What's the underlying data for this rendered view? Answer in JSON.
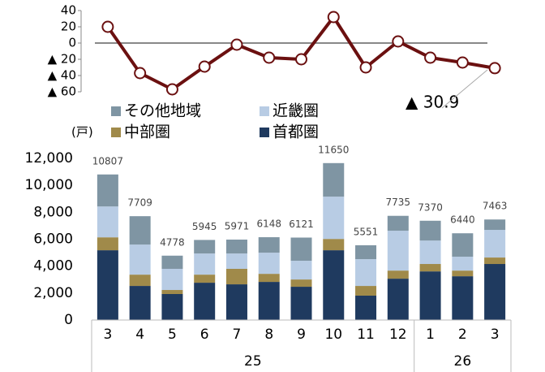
{
  "chart_data": [
    {
      "type": "line",
      "values": [
        20,
        -37,
        -57,
        -29,
        -2,
        -18,
        -20,
        32,
        -30,
        2,
        -18,
        -24,
        -30.9
      ],
      "color": "#6b1010",
      "ylim": [
        -60,
        40
      ],
      "yticks": [
        40,
        20,
        0,
        {
          "value": -20,
          "label": "▲ 20"
        },
        {
          "value": -40,
          "label": "▲ 40"
        },
        {
          "value": -60,
          "label": "▲ 60"
        }
      ],
      "annotation": "▲ 30.9"
    },
    {
      "type": "stacked_bar",
      "unit_label": "(戸)",
      "categories": [
        "3",
        "4",
        "5",
        "6",
        "7",
        "8",
        "9",
        "10",
        "11",
        "12",
        "1",
        "2",
        "3"
      ],
      "category_groups": [
        {
          "label": "25",
          "count": 10
        },
        {
          "label": "26",
          "count": 3
        }
      ],
      "series": [
        {
          "name": "首都圏",
          "color": "#1f3a5f",
          "values": [
            5180,
            2530,
            1930,
            2770,
            2650,
            2830,
            2470,
            5180,
            1810,
            3070,
            3610,
            3250,
            4160
          ]
        },
        {
          "name": "中部圏",
          "color": "#a08a4a",
          "values": [
            960,
            840,
            300,
            600,
            1150,
            600,
            540,
            840,
            720,
            600,
            550,
            420,
            480
          ]
        },
        {
          "name": "近畿圏",
          "color": "#b8cce4",
          "values": [
            2290,
            2230,
            1570,
            1570,
            1140,
            1570,
            1390,
            3140,
            1990,
            2960,
            1740,
            1030,
            2050
          ]
        },
        {
          "name": "その他地域",
          "color": "#7f95a3",
          "values": [
            2377,
            2109,
            978,
            1005,
            1031,
            1148,
            1721,
            2490,
            1031,
            1105,
            1470,
            1740,
            773
          ]
        }
      ],
      "totals": [
        10807,
        7709,
        4778,
        5945,
        5971,
        6148,
        6121,
        11650,
        5551,
        7735,
        7370,
        6440,
        7463
      ],
      "ylim": [
        0,
        12000
      ],
      "yticks": [
        0,
        {
          "value": 2000,
          "label": "2,000"
        },
        {
          "value": 4000,
          "label": "4,000"
        },
        {
          "value": 6000,
          "label": "6,000"
        },
        {
          "value": 8000,
          "label": "8,000"
        },
        {
          "value": 10000,
          "label": "10,000"
        },
        {
          "value": 12000,
          "label": "12,000"
        }
      ]
    }
  ]
}
